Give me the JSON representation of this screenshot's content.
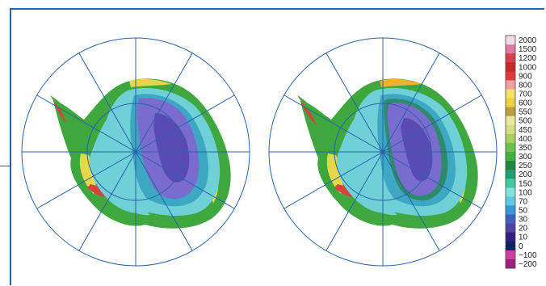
{
  "figure": {
    "panels": [
      {
        "id": "left-map"
      },
      {
        "id": "right-map"
      }
    ],
    "colorbar": {
      "labels": [
        "2000",
        "1500",
        "1200",
        "1000",
        "900",
        "800",
        "700",
        "600",
        "550",
        "500",
        "450",
        "400",
        "350",
        "300",
        "250",
        "200",
        "150",
        "100",
        "70",
        "50",
        "30",
        "20",
        "10",
        "0",
        "−100",
        "−200"
      ],
      "colors": [
        "#f1dde8",
        "#e07aa0",
        "#d8404a",
        "#c82828",
        "#e03a3a",
        "#f0a0a0",
        "#f5e060",
        "#f0d040",
        "#b8a040",
        "#e8e8a0",
        "#d0e080",
        "#a8d060",
        "#70c050",
        "#40b040",
        "#208840",
        "#20a070",
        "#40c8a0",
        "#80e0e0",
        "#60c8e0",
        "#3898d8",
        "#4060c0",
        "#5040a0",
        "#302080",
        "#102060",
        "#d040a0",
        "#a02080"
      ]
    },
    "palette": {
      "ocean": "#ffffff",
      "grid": "#2a62a8",
      "interior_deep": "#5a4bb4",
      "interior": "#7a6ccf",
      "plateau": "#3da7c4",
      "slope": "#6fd0d8",
      "coast_green": "#3ea83f",
      "coast_yellow": "#e8d64a",
      "coast_red": "#d9423a",
      "coast_orange": "#f0b030"
    }
  }
}
